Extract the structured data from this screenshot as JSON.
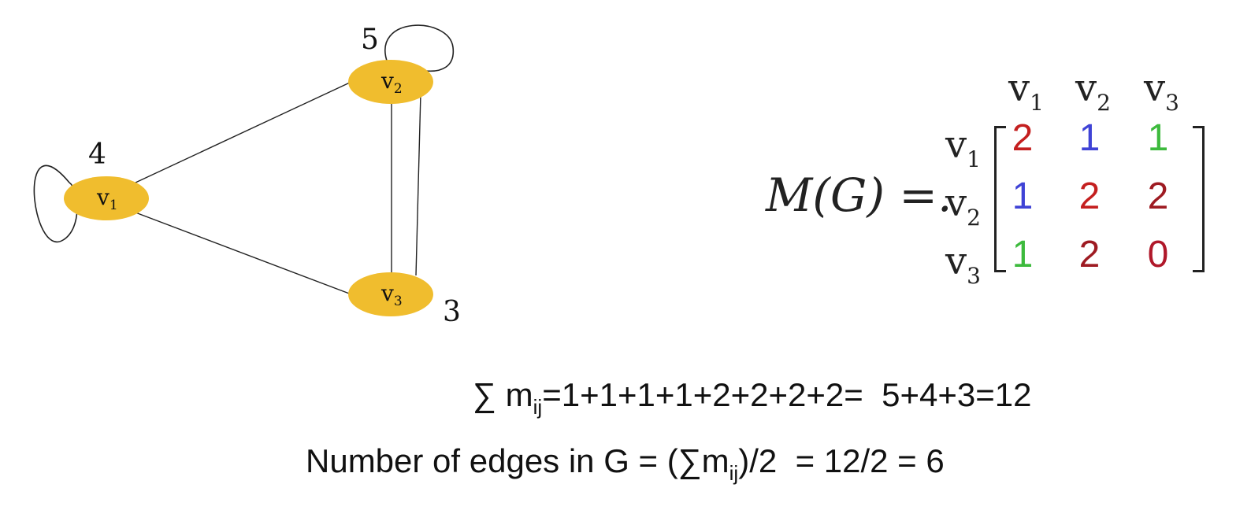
{
  "graph": {
    "nodes": [
      {
        "id": "v1",
        "base": "v",
        "sub": "1",
        "degree": "4"
      },
      {
        "id": "v2",
        "base": "v",
        "sub": "2",
        "degree": "5"
      },
      {
        "id": "v3",
        "base": "v",
        "sub": "3",
        "degree": "3"
      }
    ],
    "edges": [
      {
        "from": "v1",
        "to": "v1",
        "kind": "loop"
      },
      {
        "from": "v2",
        "to": "v2",
        "kind": "loop"
      },
      {
        "from": "v1",
        "to": "v2",
        "kind": "line"
      },
      {
        "from": "v1",
        "to": "v3",
        "kind": "line"
      },
      {
        "from": "v2",
        "to": "v3",
        "kind": "line"
      },
      {
        "from": "v2",
        "to": "v3",
        "kind": "line"
      }
    ],
    "node_color": "#F0BD2E"
  },
  "matrix": {
    "lhs": "M(G) =.",
    "col_headers": [
      {
        "b": "v",
        "s": "1"
      },
      {
        "b": "v",
        "s": "2"
      },
      {
        "b": "v",
        "s": "3"
      }
    ],
    "row_headers": [
      {
        "b": "v",
        "s": "1"
      },
      {
        "b": "v",
        "s": "2"
      },
      {
        "b": "v",
        "s": "3"
      }
    ],
    "rows": [
      [
        {
          "v": "2",
          "c": "#C41F1F"
        },
        {
          "v": "1",
          "c": "#3F43D6"
        },
        {
          "v": "1",
          "c": "#3DBA3D"
        }
      ],
      [
        {
          "v": "1",
          "c": "#3F43D6"
        },
        {
          "v": "2",
          "c": "#C41F1F"
        },
        {
          "v": "2",
          "c": "#9E1B22"
        }
      ],
      [
        {
          "v": "1",
          "c": "#3DBA3D"
        },
        {
          "v": "2",
          "c": "#9E1B22"
        },
        {
          "v": "0",
          "c": "#B0182A"
        }
      ]
    ]
  },
  "formulas": {
    "sum_symbol": "∑",
    "sum_m": "m",
    "sum_sub": "ij",
    "sum_rhs": "=1+1+1+1+2+2+2+2=  5+4+3=12",
    "edges_prefix": "Number of edges in G = (∑m",
    "edges_sub": "ij",
    "edges_suffix": ")/2  = 12/2 = 6"
  }
}
